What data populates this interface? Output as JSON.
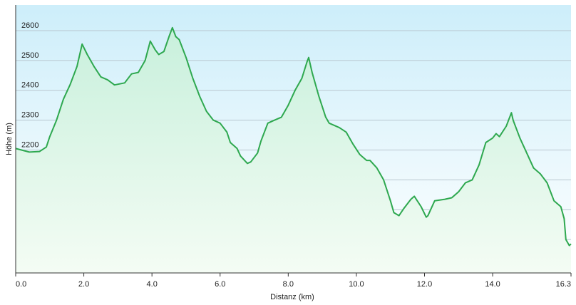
{
  "chart_data": {
    "type": "area",
    "x_label": "Distanz  (km)",
    "y_label": "Höhe (m)",
    "color": "#2ea84f",
    "x": [
      0.0,
      0.4,
      0.7,
      0.9,
      1.0,
      1.2,
      1.4,
      1.6,
      1.8,
      1.95,
      2.1,
      2.3,
      2.5,
      2.7,
      2.9,
      3.2,
      3.4,
      3.6,
      3.8,
      3.95,
      4.1,
      4.2,
      4.35,
      4.5,
      4.6,
      4.7,
      4.8,
      5.0,
      5.2,
      5.4,
      5.6,
      5.8,
      6.0,
      6.2,
      6.3,
      6.5,
      6.6,
      6.8,
      6.9,
      7.1,
      7.2,
      7.4,
      7.6,
      7.8,
      8.0,
      8.2,
      8.4,
      8.55,
      8.6,
      8.7,
      8.9,
      9.1,
      9.2,
      9.5,
      9.7,
      9.9,
      10.1,
      10.3,
      10.4,
      10.6,
      10.8,
      11.0,
      11.1,
      11.25,
      11.4,
      11.6,
      11.7,
      11.9,
      12.05,
      12.1,
      12.3,
      12.6,
      12.8,
      13.0,
      13.2,
      13.4,
      13.6,
      13.8,
      14.0,
      14.1,
      14.2,
      14.4,
      14.55,
      14.6,
      14.8,
      15.0,
      15.2,
      15.4,
      15.6,
      15.8,
      16.0,
      16.1,
      16.15,
      16.25,
      16.3
    ],
    "values": [
      2205,
      2193,
      2195,
      2210,
      2245,
      2300,
      2370,
      2420,
      2480,
      2555,
      2520,
      2480,
      2445,
      2435,
      2418,
      2425,
      2455,
      2460,
      2500,
      2565,
      2535,
      2520,
      2530,
      2580,
      2610,
      2580,
      2570,
      2510,
      2440,
      2380,
      2330,
      2300,
      2290,
      2260,
      2225,
      2205,
      2180,
      2155,
      2160,
      2190,
      2230,
      2290,
      2300,
      2310,
      2350,
      2400,
      2440,
      2495,
      2510,
      2460,
      2380,
      2310,
      2290,
      2275,
      2260,
      2220,
      2185,
      2165,
      2165,
      2140,
      2100,
      2030,
      1990,
      1980,
      2005,
      2035,
      2045,
      2010,
      1975,
      1980,
      2030,
      2035,
      2040,
      2060,
      2090,
      2100,
      2150,
      2225,
      2240,
      2255,
      2245,
      2280,
      2325,
      2300,
      2240,
      2190,
      2140,
      2120,
      2090,
      2030,
      2010,
      1970,
      1900,
      1880,
      1885
    ],
    "xlim": [
      0,
      16.3
    ],
    "ylim": [
      1788,
      2686
    ],
    "xticks": [
      {
        "value": 0,
        "label": "0.0"
      },
      {
        "value": 2,
        "label": "2.0"
      },
      {
        "value": 4,
        "label": "4.0"
      },
      {
        "value": 6,
        "label": "6.0"
      },
      {
        "value": 8,
        "label": "8.0"
      },
      {
        "value": 10,
        "label": "10.0"
      },
      {
        "value": 12,
        "label": "12.0"
      },
      {
        "value": 14,
        "label": "14.0"
      },
      {
        "value": 16.3,
        "label": "16.3"
      }
    ],
    "yticks": [
      1900,
      2000,
      2100,
      2200,
      2300,
      2400,
      2500,
      2600
    ],
    "grid": true
  }
}
